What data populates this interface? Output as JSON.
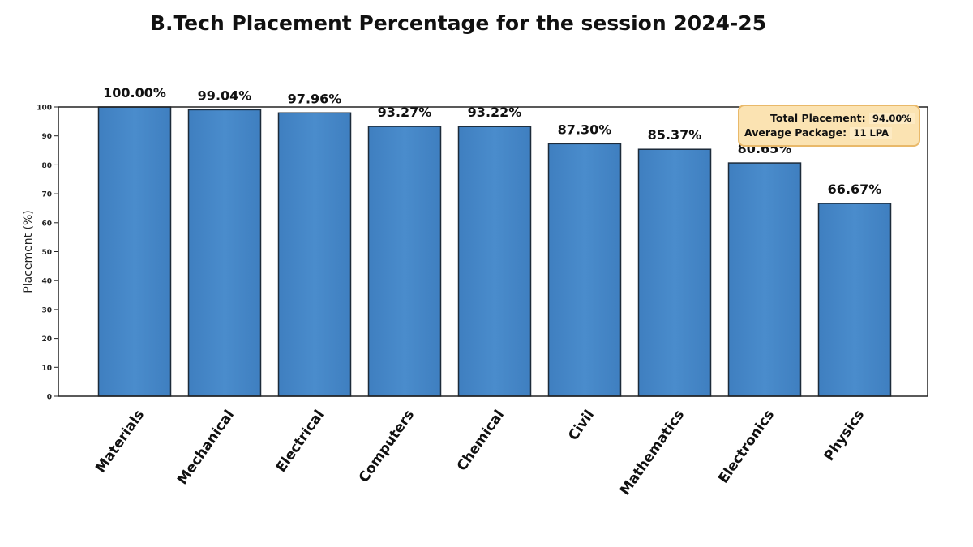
{
  "chart_data": {
    "type": "bar",
    "title": "B.Tech Placement Percentage for the session 2024-25",
    "xlabel": "",
    "ylabel": "Placement (%)",
    "ylim": [
      0,
      100
    ],
    "yticks": [
      0,
      10,
      20,
      30,
      40,
      50,
      60,
      70,
      80,
      90,
      100
    ],
    "categories": [
      "Materials",
      "Mechanical",
      "Electrical",
      "Computers",
      "Chemical",
      "Civil",
      "Mathematics",
      "Electronics",
      "Physics"
    ],
    "values": [
      100.0,
      99.04,
      97.96,
      93.27,
      93.22,
      87.3,
      85.37,
      80.65,
      66.67
    ],
    "data_labels": [
      "100.00%",
      "99.04%",
      "97.96%",
      "93.27%",
      "93.22%",
      "87.30%",
      "85.37%",
      "80.65%",
      "66.67%"
    ],
    "bar_color": "#4a8ccc",
    "grid": false,
    "legend": "none",
    "annotation": {
      "total_label": "Total Placement:",
      "total_value": "94.00%",
      "package_label": "Average Package:",
      "package_value": "11 LPA",
      "placement": "top-right"
    }
  }
}
